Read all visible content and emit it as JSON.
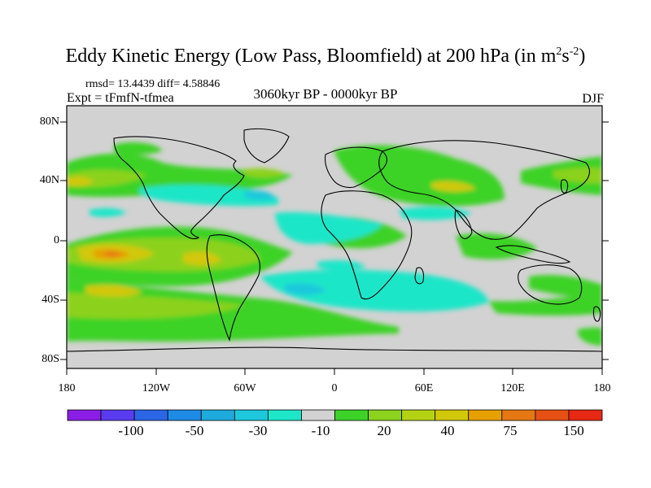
{
  "title": {
    "text": "Eddy Kinetic Energy (Low Pass, Bloomfield) at 200 hPa (in m",
    "sup1": "2",
    "mid": "s",
    "sup2": "-2",
    "end": ")"
  },
  "stats": "rmsd= 13.4439 diff= 4.58846",
  "experiment": "Expt = tFmfN-tfmea",
  "period": "3060kyr BP - 0000kyr BP",
  "season": "DJF",
  "lat_labels": [
    "80N",
    "40N",
    "0",
    "40S",
    "80S"
  ],
  "lon_labels": [
    "180",
    "120W",
    "60W",
    "0",
    "60E",
    "120E",
    "180"
  ],
  "colorbar": {
    "colors": [
      "#8a1ee6",
      "#5a3cf0",
      "#2a66e6",
      "#1e8ce6",
      "#1eaadc",
      "#1ec8dc",
      "#1ee6c8",
      "#d2d2d2",
      "#3cd228",
      "#8cd21e",
      "#b4d214",
      "#d2c80a",
      "#e6a000",
      "#e67814",
      "#e65014",
      "#e62814"
    ],
    "labels": [
      "-100",
      "-50",
      "-30",
      "-10",
      "20",
      "40",
      "75",
      "150"
    ]
  },
  "colors": {
    "neutral": "#d2d2d2",
    "green": "#3cd228",
    "lime": "#8cd21e",
    "yellow": "#d2c80a",
    "orange": "#e6a000",
    "dark_orange": "#e67814",
    "cyan": "#1ee6c8",
    "blue": "#1ec8dc"
  }
}
